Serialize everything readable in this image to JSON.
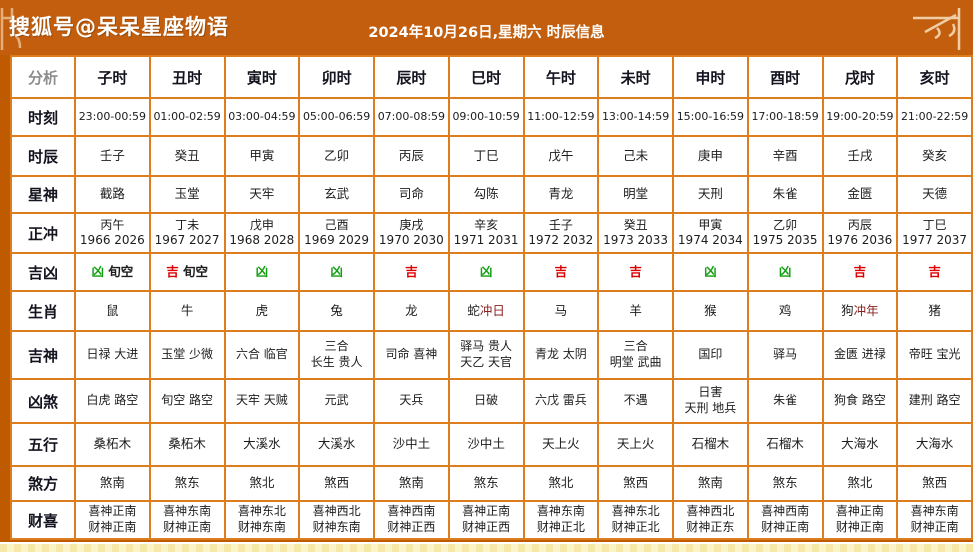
{
  "header": {
    "brand": "搜狐号@呆呆星座物语",
    "title": "2024年10月26日,星期六 时辰信息"
  },
  "colors": {
    "ji": "#DD0000",
    "xiong": "#12A012",
    "chong": "#8B2222",
    "header_bg": "#C25E0E",
    "border": "#DC7E1E",
    "edge": "#C05A00"
  },
  "table": {
    "corner_label": "分析",
    "columns": [
      "子时",
      "丑时",
      "寅时",
      "卯时",
      "辰时",
      "巳时",
      "午时",
      "未时",
      "申时",
      "酉时",
      "戌时",
      "亥时"
    ],
    "rows": [
      {
        "label": "时刻",
        "cells": [
          [
            [
              "23:00-00:59"
            ]
          ],
          [
            [
              "01:00-02:59"
            ]
          ],
          [
            [
              "03:00-04:59"
            ]
          ],
          [
            [
              "05:00-06:59"
            ]
          ],
          [
            [
              "07:00-08:59"
            ]
          ],
          [
            [
              "09:00-10:59"
            ]
          ],
          [
            [
              "11:00-12:59"
            ]
          ],
          [
            [
              "13:00-14:59"
            ]
          ],
          [
            [
              "15:00-16:59"
            ]
          ],
          [
            [
              "17:00-18:59"
            ]
          ],
          [
            [
              "19:00-20:59"
            ]
          ],
          [
            [
              "21:00-22:59"
            ]
          ]
        ]
      },
      {
        "label": "时辰",
        "cells": [
          [
            [
              "壬子"
            ]
          ],
          [
            [
              "癸丑"
            ]
          ],
          [
            [
              "甲寅"
            ]
          ],
          [
            [
              "乙卯"
            ]
          ],
          [
            [
              "丙辰"
            ]
          ],
          [
            [
              "丁巳"
            ]
          ],
          [
            [
              "戊午"
            ]
          ],
          [
            [
              "己未"
            ]
          ],
          [
            [
              "庚申"
            ]
          ],
          [
            [
              "辛酉"
            ]
          ],
          [
            [
              "壬戌"
            ]
          ],
          [
            [
              "癸亥"
            ]
          ]
        ]
      },
      {
        "label": "星神",
        "cells": [
          [
            [
              "截路"
            ]
          ],
          [
            [
              "玉堂"
            ]
          ],
          [
            [
              "天牢"
            ]
          ],
          [
            [
              "玄武"
            ]
          ],
          [
            [
              "司命"
            ]
          ],
          [
            [
              "勾陈"
            ]
          ],
          [
            [
              "青龙"
            ]
          ],
          [
            [
              "明堂"
            ]
          ],
          [
            [
              "天刑"
            ]
          ],
          [
            [
              "朱雀"
            ]
          ],
          [
            [
              "金匮"
            ]
          ],
          [
            [
              "天德"
            ]
          ]
        ]
      },
      {
        "label": "正冲",
        "cells": [
          [
            [
              "丙午"
            ],
            [
              "1966 2026"
            ]
          ],
          [
            [
              "丁未"
            ],
            [
              "1967 2027"
            ]
          ],
          [
            [
              "戊申"
            ],
            [
              "1968 2028"
            ]
          ],
          [
            [
              "己酉"
            ],
            [
              "1969 2029"
            ]
          ],
          [
            [
              "庚戌"
            ],
            [
              "1970 2030"
            ]
          ],
          [
            [
              "辛亥"
            ],
            [
              "1971 2031"
            ]
          ],
          [
            [
              "壬子"
            ],
            [
              "1972 2032"
            ]
          ],
          [
            [
              "癸丑"
            ],
            [
              "1973 2033"
            ]
          ],
          [
            [
              "甲寅"
            ],
            [
              "1974 2034"
            ]
          ],
          [
            [
              "乙卯"
            ],
            [
              "1975 2035"
            ]
          ],
          [
            [
              "丙辰"
            ],
            [
              "1976 2036"
            ]
          ],
          [
            [
              "丁巳"
            ],
            [
              "1977 2037"
            ]
          ]
        ]
      },
      {
        "label": "吉凶",
        "cells": [
          [
            [
              {
                "t": "凶",
                "c": "xiong"
              },
              " 旬空"
            ]
          ],
          [
            [
              {
                "t": "吉",
                "c": "ji"
              },
              " 旬空"
            ]
          ],
          [
            [
              {
                "t": "凶",
                "c": "xiong"
              }
            ]
          ],
          [
            [
              {
                "t": "凶",
                "c": "xiong"
              }
            ]
          ],
          [
            [
              {
                "t": "吉",
                "c": "ji"
              }
            ]
          ],
          [
            [
              {
                "t": "凶",
                "c": "xiong"
              }
            ]
          ],
          [
            [
              {
                "t": "吉",
                "c": "ji"
              }
            ]
          ],
          [
            [
              {
                "t": "吉",
                "c": "ji"
              }
            ]
          ],
          [
            [
              {
                "t": "凶",
                "c": "xiong"
              }
            ]
          ],
          [
            [
              {
                "t": "凶",
                "c": "xiong"
              }
            ]
          ],
          [
            [
              {
                "t": "吉",
                "c": "ji"
              }
            ]
          ],
          [
            [
              {
                "t": "吉",
                "c": "ji"
              }
            ]
          ]
        ]
      },
      {
        "label": "生肖",
        "cells": [
          [
            [
              "鼠"
            ]
          ],
          [
            [
              "牛"
            ]
          ],
          [
            [
              "虎"
            ]
          ],
          [
            [
              "兔"
            ]
          ],
          [
            [
              "龙"
            ]
          ],
          [
            [
              "蛇",
              {
                "t": "冲日",
                "c": "chong"
              }
            ]
          ],
          [
            [
              "马"
            ]
          ],
          [
            [
              "羊"
            ]
          ],
          [
            [
              "猴"
            ]
          ],
          [
            [
              "鸡"
            ]
          ],
          [
            [
              "狗",
              {
                "t": "冲年",
                "c": "chong"
              }
            ]
          ],
          [
            [
              "猪"
            ]
          ]
        ]
      },
      {
        "label": "吉神",
        "cells": [
          [
            [
              "日禄 大进"
            ]
          ],
          [
            [
              "玉堂 少微"
            ]
          ],
          [
            [
              "六合 临官"
            ]
          ],
          [
            [
              "三合"
            ],
            [
              "长生 贵人"
            ]
          ],
          [
            [
              "司命 喜神"
            ]
          ],
          [
            [
              "驿马 贵人"
            ],
            [
              "天乙 天官"
            ]
          ],
          [
            [
              "青龙 太阴"
            ]
          ],
          [
            [
              "三合"
            ],
            [
              "明堂 武曲"
            ]
          ],
          [
            [
              "国印"
            ]
          ],
          [
            [
              "驿马"
            ]
          ],
          [
            [
              "金匮 进禄"
            ]
          ],
          [
            [
              "帝旺 宝光"
            ]
          ]
        ]
      },
      {
        "label": "凶煞",
        "cells": [
          [
            [
              "白虎 路空"
            ]
          ],
          [
            [
              "旬空 路空"
            ]
          ],
          [
            [
              "天牢 天贼"
            ]
          ],
          [
            [
              "元武"
            ]
          ],
          [
            [
              "天兵"
            ]
          ],
          [
            [
              "日破"
            ]
          ],
          [
            [
              "六戊 雷兵"
            ]
          ],
          [
            [
              "不遇"
            ]
          ],
          [
            [
              "日害"
            ],
            [
              "天刑 地兵"
            ]
          ],
          [
            [
              "朱雀"
            ]
          ],
          [
            [
              "狗食 路空"
            ]
          ],
          [
            [
              "建刑 路空"
            ]
          ]
        ]
      },
      {
        "label": "五行",
        "cells": [
          [
            [
              "桑柘木"
            ]
          ],
          [
            [
              "桑柘木"
            ]
          ],
          [
            [
              "大溪水"
            ]
          ],
          [
            [
              "大溪水"
            ]
          ],
          [
            [
              "沙中土"
            ]
          ],
          [
            [
              "沙中土"
            ]
          ],
          [
            [
              "天上火"
            ]
          ],
          [
            [
              "天上火"
            ]
          ],
          [
            [
              "石榴木"
            ]
          ],
          [
            [
              "石榴木"
            ]
          ],
          [
            [
              "大海水"
            ]
          ],
          [
            [
              "大海水"
            ]
          ]
        ]
      },
      {
        "label": "煞方",
        "cells": [
          [
            [
              "煞南"
            ]
          ],
          [
            [
              "煞东"
            ]
          ],
          [
            [
              "煞北"
            ]
          ],
          [
            [
              "煞西"
            ]
          ],
          [
            [
              "煞南"
            ]
          ],
          [
            [
              "煞东"
            ]
          ],
          [
            [
              "煞北"
            ]
          ],
          [
            [
              "煞西"
            ]
          ],
          [
            [
              "煞南"
            ]
          ],
          [
            [
              "煞东"
            ]
          ],
          [
            [
              "煞北"
            ]
          ],
          [
            [
              "煞西"
            ]
          ]
        ]
      },
      {
        "label": "财喜",
        "cells": [
          [
            [
              "喜神正南"
            ],
            [
              "财神正南"
            ]
          ],
          [
            [
              "喜神东南"
            ],
            [
              "财神正南"
            ]
          ],
          [
            [
              "喜神东北"
            ],
            [
              "财神东南"
            ]
          ],
          [
            [
              "喜神西北"
            ],
            [
              "财神东南"
            ]
          ],
          [
            [
              "喜神西南"
            ],
            [
              "财神正西"
            ]
          ],
          [
            [
              "喜神正南"
            ],
            [
              "财神正西"
            ]
          ],
          [
            [
              "喜神东南"
            ],
            [
              "财神正北"
            ]
          ],
          [
            [
              "喜神东北"
            ],
            [
              "财神正北"
            ]
          ],
          [
            [
              "喜神西北"
            ],
            [
              "财神正东"
            ]
          ],
          [
            [
              "喜神西南"
            ],
            [
              "财神正南"
            ]
          ],
          [
            [
              "喜神正南"
            ],
            [
              "财神正南"
            ]
          ],
          [
            [
              "喜神东南"
            ],
            [
              "财神正南"
            ]
          ]
        ]
      }
    ]
  }
}
